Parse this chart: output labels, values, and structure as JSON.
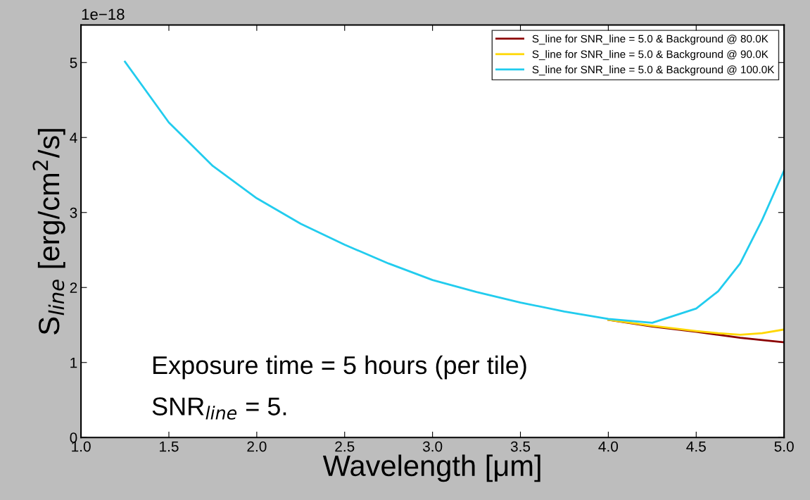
{
  "chart_data": {
    "type": "line",
    "xlabel": "Wavelength [μm]",
    "ylabel": "S$_{line}$ [erg/cm$^{2}$/s]",
    "x": [
      1.25,
      1.5,
      1.75,
      2.0,
      2.25,
      2.5,
      2.75,
      3.0,
      3.25,
      3.5,
      3.75,
      4.0,
      4.25,
      4.5,
      4.625,
      4.75,
      4.875,
      5.0
    ],
    "series": [
      {
        "name": "S_line for SNR_line = 5.0 & Background @ 80.0K",
        "color": "#8b0000",
        "values": [
          null,
          null,
          null,
          null,
          null,
          null,
          null,
          null,
          null,
          null,
          null,
          1.57,
          1.48,
          1.41,
          1.37,
          1.33,
          1.3,
          1.27
        ]
      },
      {
        "name": "S_line for SNR_line = 5.0 & Background @ 90.0K",
        "color": "#ffd700",
        "values": [
          null,
          null,
          null,
          null,
          null,
          null,
          null,
          null,
          null,
          null,
          null,
          1.57,
          1.49,
          1.42,
          1.39,
          1.37,
          1.39,
          1.44
        ]
      },
      {
        "name": "S_line for SNR_line = 5.0 & Background @ 100.0K",
        "color": "#22ccee",
        "values": [
          5.01,
          4.2,
          3.62,
          3.19,
          2.85,
          2.57,
          2.32,
          2.1,
          1.94,
          1.8,
          1.68,
          1.58,
          1.53,
          1.72,
          1.95,
          2.32,
          2.9,
          3.56
        ]
      }
    ],
    "xlim": [
      1.0,
      5.0
    ],
    "ylim": [
      0,
      5.5
    ],
    "xticks": [
      {
        "value": 1.0,
        "label": "1.0"
      },
      {
        "value": 1.5,
        "label": "1.5"
      },
      {
        "value": 2.0,
        "label": "2.0"
      },
      {
        "value": 2.5,
        "label": "2.5"
      },
      {
        "value": 3.0,
        "label": "3.0"
      },
      {
        "value": 3.5,
        "label": "3.5"
      },
      {
        "value": 4.0,
        "label": "4.0"
      },
      {
        "value": 4.5,
        "label": "4.5"
      },
      {
        "value": 5.0,
        "label": "5.0"
      }
    ],
    "yticks": [
      0,
      1,
      2,
      3,
      4,
      5
    ],
    "annotations": [
      "1e−18",
      "Exposure time = 5 hours (per tile)",
      "SNR$_{line}$ = 5."
    ],
    "legend": "top right",
    "grid": false,
    "marker": "none",
    "line_style": "solid"
  }
}
